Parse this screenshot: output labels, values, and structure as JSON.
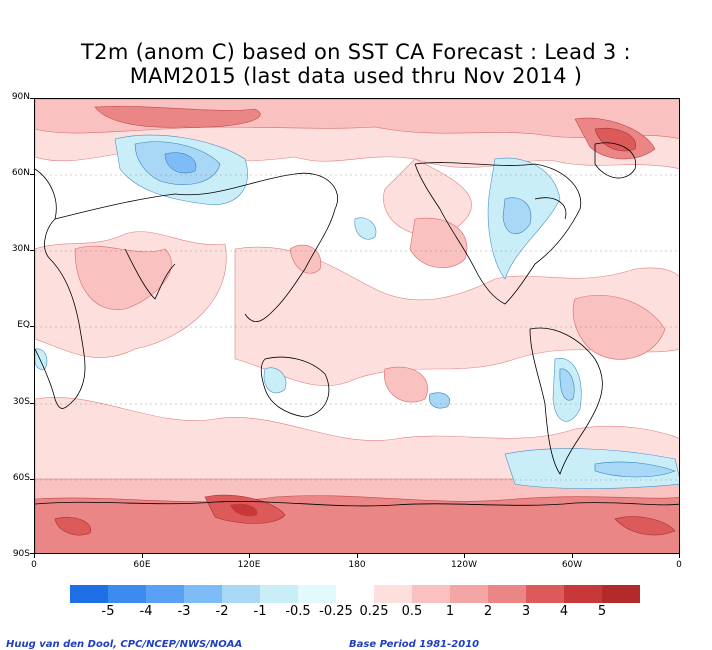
{
  "title_line1": "T2m (anom C) based on SST CA Forecast : Lead 3 :",
  "title_line2": "MAM2015 (last data used thru Nov 2014 )",
  "lat_labels": [
    "90N",
    "60N",
    "30N",
    "EQ",
    "30S",
    "60S",
    "90S"
  ],
  "lon_labels": [
    "0",
    "60E",
    "120E",
    "180",
    "120W",
    "60W",
    "0"
  ],
  "colorbar": {
    "labels": [
      "-5",
      "-4",
      "-3",
      "-2",
      "-1",
      "-0.5",
      "-0.25",
      "0.25",
      "0.5",
      "1",
      "2",
      "3",
      "4",
      "5"
    ],
    "colors": [
      "#1e6fe6",
      "#3c8cf0",
      "#5aa0f5",
      "#7dbcf7",
      "#a8d8f6",
      "#c9eef8",
      "#e2fafc",
      "#ffffff",
      "#fde0de",
      "#f9c2c0",
      "#f4a6a4",
      "#ea8686",
      "#dc5a5a",
      "#c83838",
      "#b22a2a"
    ]
  },
  "credit_left": "Huug van den Dool, CPC/NCEP/NWS/NOAA",
  "credit_right": "Base Period 1981-2010"
}
